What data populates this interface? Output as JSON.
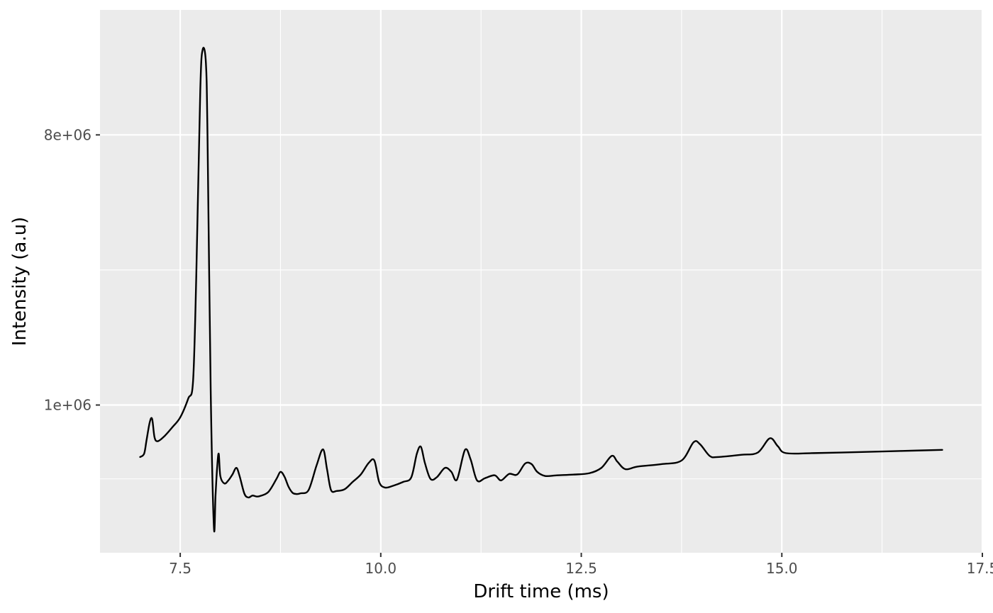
{
  "chart_data": {
    "type": "line",
    "title": "",
    "xlabel": "Drift time (ms)",
    "ylabel": "Intensity (a.u)",
    "xlim": [
      6.5,
      17.5
    ],
    "y_scale": "sqrt",
    "ylim": [
      0,
      13500000
    ],
    "x_ticks": [
      {
        "value": 7.5,
        "label": "7.5"
      },
      {
        "value": 10.0,
        "label": "10.0"
      },
      {
        "value": 12.5,
        "label": "12.5"
      },
      {
        "value": 15.0,
        "label": "15.0"
      },
      {
        "value": 17.5,
        "label": "17.5"
      }
    ],
    "y_ticks": [
      {
        "value": 1000000,
        "label": "1e+06"
      },
      {
        "value": 8000000,
        "label": "8e+06"
      }
    ],
    "grid": true,
    "background_color": "#ebebeb",
    "grid_color": "#ffffff",
    "line_color": "#000000",
    "series": [
      {
        "x": [
          7.0,
          7.05,
          7.08,
          7.12,
          7.15,
          7.18,
          7.22,
          7.3,
          7.4,
          7.5,
          7.6,
          7.66,
          7.7,
          7.75,
          7.78,
          7.82,
          7.84,
          7.88,
          7.92,
          7.94,
          7.96,
          7.98,
          8.0,
          8.05,
          8.1,
          8.15,
          8.2,
          8.24,
          8.3,
          8.35,
          8.4,
          8.45,
          8.5,
          8.6,
          8.7,
          8.75,
          8.8,
          8.85,
          8.9,
          8.95,
          9.0,
          9.1,
          9.2,
          9.28,
          9.33,
          9.38,
          9.45,
          9.55,
          9.65,
          9.75,
          9.85,
          9.92,
          9.98,
          10.05,
          10.15,
          10.28,
          10.38,
          10.45,
          10.5,
          10.55,
          10.62,
          10.7,
          10.8,
          10.88,
          10.95,
          11.05,
          11.12,
          11.2,
          11.3,
          11.42,
          11.5,
          11.6,
          11.7,
          11.8,
          11.88,
          11.95,
          12.05,
          12.2,
          12.4,
          12.6,
          12.75,
          12.88,
          12.95,
          13.05,
          13.2,
          13.5,
          13.75,
          13.9,
          13.98,
          14.1,
          14.2,
          14.5,
          14.7,
          14.85,
          14.95,
          15.05,
          15.4,
          16.0,
          16.5,
          17.0
        ],
        "y": [
          420000,
          450000,
          580000,
          780000,
          820000,
          610000,
          570000,
          620000,
          720000,
          840000,
          1090000,
          1350000,
          3500000,
          9800000,
          11600000,
          11000000,
          8000000,
          1200000,
          30000,
          150000,
          330000,
          450000,
          270000,
          220000,
          240000,
          280000,
          330000,
          270000,
          160000,
          140000,
          150000,
          145000,
          148000,
          170000,
          250000,
          300000,
          265000,
          200000,
          165000,
          158000,
          162000,
          180000,
          350000,
          490000,
          320000,
          180000,
          175000,
          185000,
          230000,
          280000,
          370000,
          390000,
          230000,
          195000,
          205000,
          230000,
          260000,
          450000,
          515000,
          370000,
          250000,
          262000,
          330000,
          300000,
          245000,
          485000,
          400000,
          240000,
          255000,
          275000,
          240000,
          285000,
          280000,
          365000,
          360000,
          300000,
          270000,
          275000,
          280000,
          290000,
          330000,
          430000,
          380000,
          320000,
          340000,
          360000,
          390000,
          560000,
          540000,
          430000,
          420000,
          440000,
          460000,
          600000,
          520000,
          455000,
          455000,
          465000,
          475000,
          485000
        ]
      }
    ]
  }
}
